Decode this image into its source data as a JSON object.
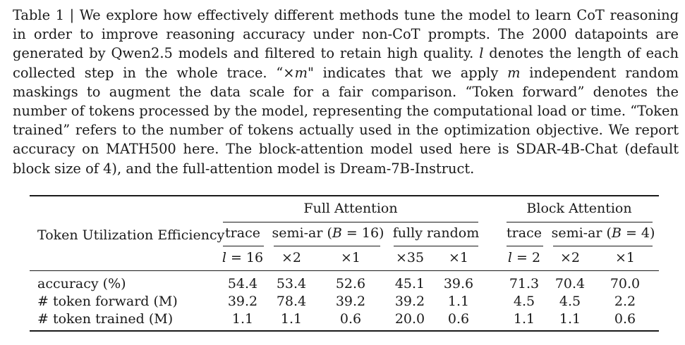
{
  "caption": {
    "label": "Table 1",
    "sep": " | ",
    "p1": "We explore how effectively different methods tune the model to learn CoT reasoning in order to improve reasoning accuracy under non-CoT prompts. The 2000 datapoints are generated by Qwen2.5 models and filtered to retain high quality. ",
    "l_sym": "l",
    "p2": " denotes the length of each collected step in the whole trace. “×",
    "m_sym1": "m",
    "p3": "\" indicates that we apply ",
    "m_sym2": "m",
    "p4": " independent random maskings to augment the data scale for a fair comparison. “Token forward” denotes the number of tokens processed by the model, representing the computational load or time. “Token trained” refers to the number of tokens actually used in the optimization objective. We report accuracy on MATH500 here. The block-attention model used here is SDAR-4B-Chat (default block size of 4), and the full-attention model is Dream-7B-Instruct."
  },
  "table": {
    "row_header": "Token Utilization Efficiency",
    "group_full": "Full Attention",
    "group_block": "Block Attention",
    "col_trace": "trace",
    "col_semiar_pre": "semi-ar (",
    "col_B": "B",
    "col_semiar_full_post": " = 16)",
    "col_semiar_block_post": " = 4)",
    "col_fully_random": "fully random",
    "sub_l": "l",
    "sub_l_full_post": " = 16",
    "sub_l_block_post": " = 2",
    "sub_x2": "×2",
    "sub_x1": "×1",
    "sub_x35": "×35",
    "rows": [
      {
        "label": "accuracy (%)",
        "values": [
          "54.4",
          "53.4",
          "52.6",
          "45.1",
          "39.6",
          "71.3",
          "70.4",
          "70.0"
        ]
      },
      {
        "label": "# token forward (M)",
        "values": [
          "39.2",
          "78.4",
          "39.2",
          "39.2",
          "1.1",
          "4.5",
          "4.5",
          "2.2"
        ]
      },
      {
        "label": "# token trained (M)",
        "values": [
          "1.1",
          "1.1",
          "0.6",
          "20.0",
          "0.6",
          "1.1",
          "1.1",
          "0.6"
        ]
      }
    ]
  }
}
